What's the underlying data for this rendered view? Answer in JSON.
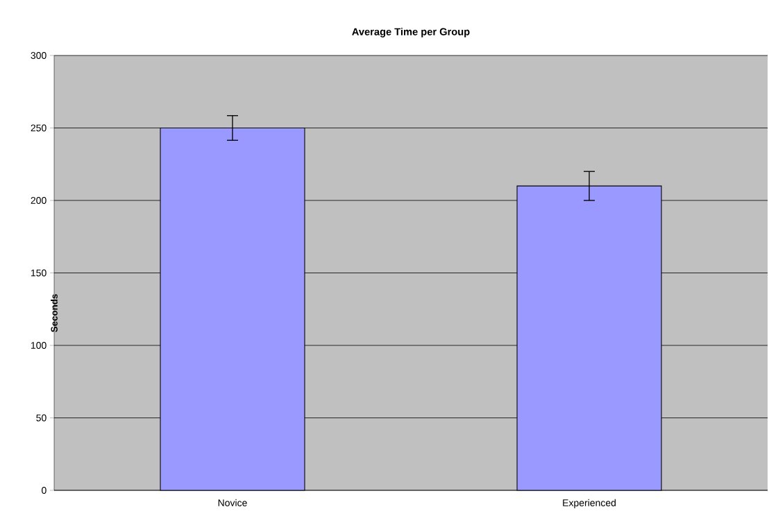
{
  "chart_data": {
    "type": "bar",
    "title": "Average Time per Group",
    "ylabel": "Seconds",
    "categories": [
      "Novice",
      "Experienced"
    ],
    "values": [
      250,
      210
    ],
    "errors": [
      8.5,
      10
    ],
    "color": "#9999ff",
    "ylim": [
      0,
      300
    ],
    "yticks": [
      0,
      50,
      100,
      150,
      200,
      250,
      300
    ],
    "grid": "y"
  }
}
